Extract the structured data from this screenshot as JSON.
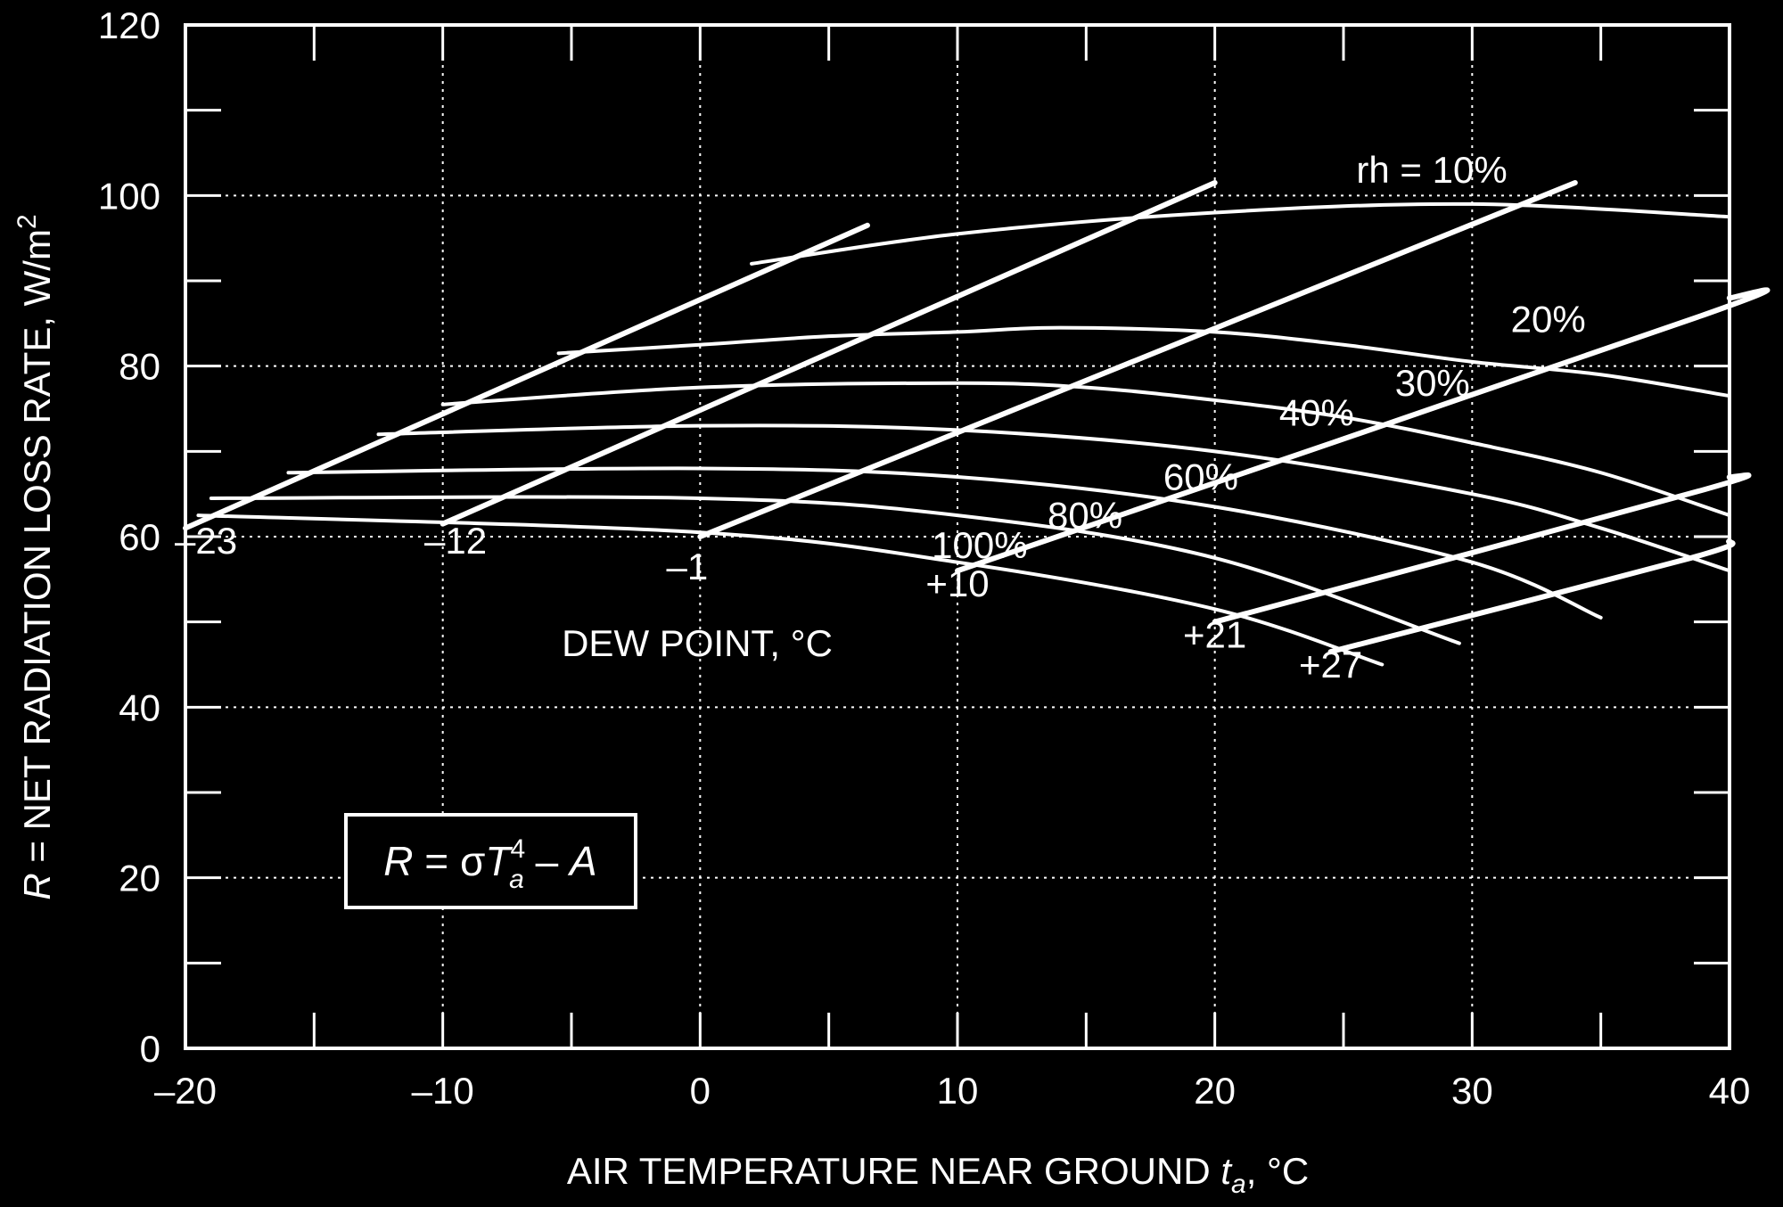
{
  "chart_data": {
    "type": "line",
    "xlabel": "AIR TEMPERATURE NEAR GROUND t_a, °C",
    "xlabel_parts": [
      "AIR TEMPERATURE NEAR GROUND ",
      "t",
      "a",
      ", °C"
    ],
    "ylabel": "R = NET RADIATION LOSS RATE, W/m2",
    "ylabel_parts": [
      "R",
      " = NET RADIATION LOSS RATE, W/m",
      "2"
    ],
    "xlim": [
      -20,
      40
    ],
    "ylim": [
      0,
      120
    ],
    "x_ticks": [
      -20,
      -10,
      0,
      10,
      20,
      30,
      40
    ],
    "x_tick_labels": [
      "–20",
      "–10",
      "0",
      "10",
      "20",
      "30",
      "40"
    ],
    "y_ticks": [
      0,
      20,
      40,
      60,
      80,
      100,
      120
    ],
    "y_tick_labels": [
      "0",
      "20",
      "40",
      "60",
      "80",
      "100",
      "120"
    ],
    "grid": true,
    "formula": {
      "parts": [
        "R",
        " = σ",
        "T",
        "4",
        "a",
        " – ",
        "A"
      ]
    },
    "dew_point_title": "DEW POINT, °C",
    "rh_series": [
      {
        "label": "rh = 10%",
        "label_at": [
          25.5,
          101.5
        ],
        "points": [
          [
            2,
            92.0
          ],
          [
            10,
            95.5
          ],
          [
            20,
            98.0
          ],
          [
            30,
            99.0
          ],
          [
            40,
            97.5
          ]
        ]
      },
      {
        "label": "20%",
        "label_at": [
          31.5,
          84
        ],
        "points": [
          [
            -5.5,
            81.5
          ],
          [
            0,
            82.5
          ],
          [
            5,
            83.5
          ],
          [
            10,
            84.0
          ],
          [
            14,
            84.5
          ],
          [
            20,
            84.0
          ],
          [
            25,
            82.5
          ],
          [
            30,
            80.5
          ],
          [
            35,
            79.0
          ],
          [
            40,
            76.5
          ]
        ]
      },
      {
        "label": "30%",
        "label_at": [
          27,
          76.5
        ],
        "points": [
          [
            -10,
            75.5
          ],
          [
            0,
            77.5
          ],
          [
            10,
            78.0
          ],
          [
            15,
            77.5
          ],
          [
            20,
            76.0
          ],
          [
            25,
            74.0
          ],
          [
            30,
            71.0
          ],
          [
            35,
            67.5
          ],
          [
            40,
            62.5
          ]
        ]
      },
      {
        "label": "40%",
        "label_at": [
          22.5,
          73.0
        ],
        "points": [
          [
            -12.5,
            72.0
          ],
          [
            0,
            73.0
          ],
          [
            10,
            72.5
          ],
          [
            20,
            70.0
          ],
          [
            30,
            65.0
          ],
          [
            35,
            61.0
          ],
          [
            40,
            56.0
          ]
        ]
      },
      {
        "label": "60%",
        "label_at": [
          18,
          65.5
        ],
        "points": [
          [
            -16,
            67.5
          ],
          [
            0,
            68.0
          ],
          [
            10,
            67.0
          ],
          [
            20,
            63.5
          ],
          [
            30,
            57.0
          ],
          [
            35,
            50.5
          ]
        ]
      },
      {
        "label": "80%",
        "label_at": [
          13.5,
          61.0
        ],
        "points": [
          [
            -19,
            64.5
          ],
          [
            0,
            64.5
          ],
          [
            10,
            62.5
          ],
          [
            20,
            57.5
          ],
          [
            29.5,
            47.5
          ]
        ]
      },
      {
        "label": "100%",
        "label_at": [
          9,
          57.5
        ],
        "points": [
          [
            -19.5,
            62.5
          ],
          [
            0,
            60.5
          ],
          [
            10,
            57.0
          ],
          [
            20,
            51.5
          ],
          [
            26.5,
            45.0
          ]
        ]
      }
    ],
    "dew_point_series": [
      {
        "label": "–23",
        "label_at": [
          -19.2,
          58.0
        ],
        "points": [
          [
            -20,
            61.0
          ],
          [
            6.5,
            96.5
          ]
        ]
      },
      {
        "label": "–12",
        "label_at": [
          -9.5,
          58.0
        ],
        "points": [
          [
            -10,
            61.5
          ],
          [
            20,
            101.5
          ]
        ]
      },
      {
        "label": "–1",
        "label_at": [
          -0.5,
          55.0
        ],
        "points": [
          [
            0,
            60.0
          ],
          [
            34,
            101.5
          ]
        ]
      },
      {
        "label": "+10",
        "label_at": [
          10,
          53.0
        ],
        "points": [
          [
            10,
            56.0
          ],
          [
            39,
            86.0
          ],
          [
            40,
            88.0
          ]
        ]
      },
      {
        "label": "+21",
        "label_at": [
          20,
          47.0
        ],
        "points": [
          [
            20,
            50.0
          ],
          [
            39,
            65.5
          ],
          [
            40,
            67.0
          ]
        ]
      },
      {
        "label": "+27",
        "label_at": [
          24.5,
          43.5
        ],
        "points": [
          [
            24.5,
            46.5
          ],
          [
            38.5,
            57.5
          ],
          [
            40,
            59.5
          ]
        ]
      }
    ]
  }
}
